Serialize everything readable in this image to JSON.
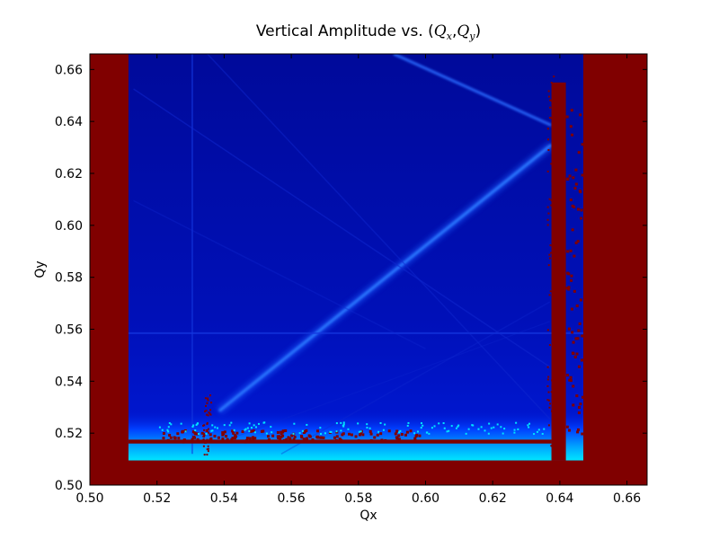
{
  "chart_data": {
    "type": "heatmap",
    "title": {
      "prefix": "Vertical Amplitude vs. (",
      "q1": "Q",
      "q1_sub": "x",
      "sep": ",",
      "q2": "Q",
      "q2_sub": "y",
      "suffix": ")"
    },
    "xlabel": "Qx",
    "ylabel": "Qy",
    "xlim": [
      0.5,
      0.666
    ],
    "ylim": [
      0.5,
      0.666
    ],
    "x_ticks": [
      "0.50",
      "0.52",
      "0.54",
      "0.56",
      "0.58",
      "0.60",
      "0.62",
      "0.64",
      "0.66"
    ],
    "y_ticks": [
      "0.50",
      "0.52",
      "0.54",
      "0.56",
      "0.58",
      "0.60",
      "0.62",
      "0.64",
      "0.66"
    ],
    "colormap": "jet",
    "colors": {
      "high": "#800000",
      "low": "#00008c",
      "mid_low": "#0010c8",
      "resonance": "#1a5cff",
      "cyan": "#00e5ff"
    },
    "stable_region": {
      "x": [
        0.5115,
        0.647
      ],
      "y": [
        0.5095,
        0.666
      ]
    },
    "unstable_band_x": [
      0.6375,
      0.6418
    ],
    "diagonal_resonance": {
      "from": [
        0.5385,
        0.5285
      ],
      "to": [
        0.6375,
        0.631
      ]
    },
    "horizontal_resonance_y": 0.5585,
    "vertical_resonance_x": 0.5305,
    "bottom_unstable_edge_y": 0.5175
  }
}
